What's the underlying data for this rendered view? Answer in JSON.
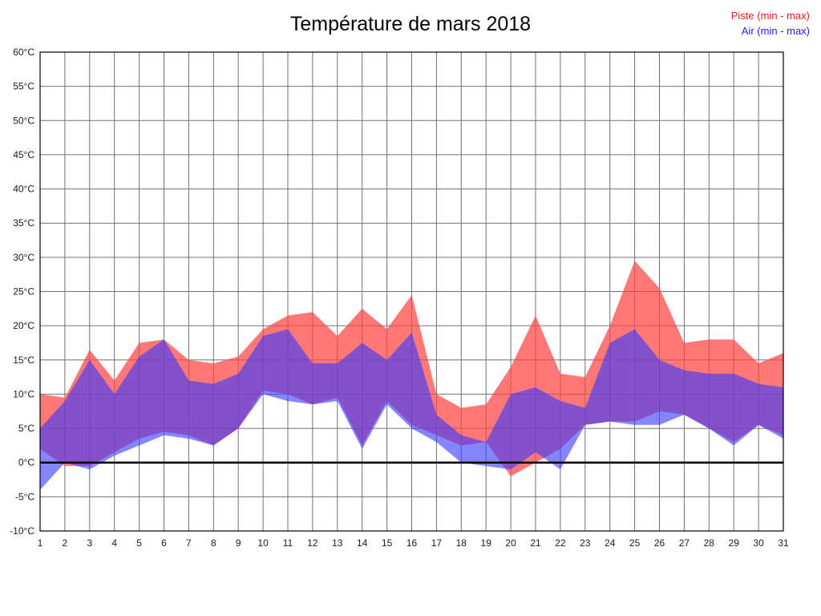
{
  "title": "Température de mars 2018",
  "legend": [
    {
      "label": "Piste (min - max)",
      "color": "#dd2222"
    },
    {
      "label": "Air (min - max)",
      "color": "#2222dd"
    }
  ],
  "chart_data": {
    "type": "area",
    "title": "Température de mars 2018",
    "xlabel": "",
    "ylabel": "",
    "x": [
      1,
      2,
      3,
      4,
      5,
      6,
      7,
      8,
      9,
      10,
      11,
      12,
      13,
      14,
      15,
      16,
      17,
      18,
      19,
      20,
      21,
      22,
      23,
      24,
      25,
      26,
      27,
      28,
      29,
      30,
      31
    ],
    "ylim": [
      -10,
      60
    ],
    "ytick_step": 5,
    "y_suffix": "°C",
    "grid": true,
    "zero_line": true,
    "legend_position": "top-right",
    "series": [
      {
        "name": "Piste (min - max)",
        "color": "#ff4444",
        "opacity": 0.72,
        "min": [
          2,
          -0.5,
          -0.5,
          1.5,
          3.5,
          4.5,
          4,
          2.5,
          5,
          10.5,
          10,
          8.5,
          9.5,
          2.5,
          9,
          5.5,
          4,
          2.5,
          3,
          -2,
          0,
          2,
          5.5,
          6,
          6,
          7.5,
          7,
          5,
          3,
          5.5,
          4
        ],
        "max": [
          10,
          9.5,
          16.5,
          12,
          17.5,
          18,
          15,
          14.5,
          15.5,
          19.5,
          21.5,
          22,
          18.5,
          22.5,
          19.5,
          24.5,
          10,
          8,
          8.5,
          14,
          21.5,
          13,
          12.5,
          20,
          29.5,
          25.5,
          17.5,
          18,
          18,
          14.5,
          16
        ]
      },
      {
        "name": "Air (min - max)",
        "color": "#3a3aff",
        "opacity": 0.62,
        "min": [
          -4,
          0,
          -1,
          1,
          2.5,
          4,
          3.5,
          2.5,
          5,
          10,
          9,
          8.5,
          9,
          2,
          8.5,
          5,
          3,
          0,
          -0.5,
          -1,
          1.5,
          -1,
          5.5,
          6,
          5.5,
          5.5,
          7,
          5,
          2.5,
          5.5,
          3.5
        ],
        "max": [
          5,
          9,
          15,
          10,
          15.5,
          18,
          12,
          11.5,
          13,
          18.5,
          19.5,
          14.5,
          14.5,
          17.5,
          15,
          19,
          7,
          4,
          3,
          10,
          11,
          9,
          8,
          17.5,
          19.5,
          15,
          13.5,
          13,
          13,
          11.5,
          11
        ]
      }
    ],
    "axis": {
      "grid_color": "#707070",
      "border_color": "#000000",
      "zero_line_color": "#000000",
      "tick_label_color": "#1a1a1a"
    }
  }
}
